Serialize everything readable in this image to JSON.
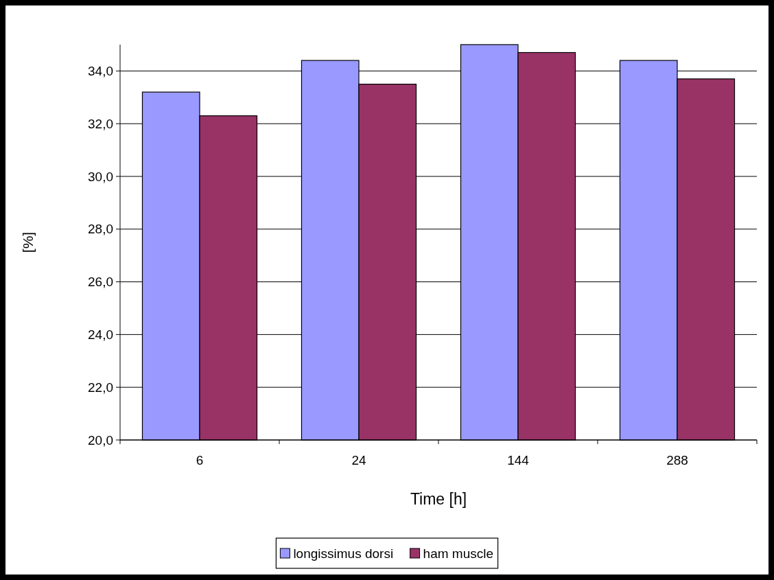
{
  "chart_data": {
    "type": "bar",
    "xlabel": "Time [h]",
    "ylabel": "[%]",
    "categories": [
      "6",
      "24",
      "144",
      "288"
    ],
    "series": [
      {
        "name": "longissimus dorsi",
        "color": "#9999ff",
        "values": [
          33.2,
          34.4,
          35.0,
          34.4
        ]
      },
      {
        "name": "ham muscle",
        "color": "#993366",
        "values": [
          32.3,
          33.5,
          34.7,
          33.7
        ]
      }
    ],
    "ylim": [
      20,
      35
    ],
    "yticks": [
      {
        "value": 20,
        "label": "20,0"
      },
      {
        "value": 22,
        "label": "22,0"
      },
      {
        "value": 24,
        "label": "24,0"
      },
      {
        "value": 26,
        "label": "26,0"
      },
      {
        "value": 28,
        "label": "28,0"
      },
      {
        "value": 30,
        "label": "30,0"
      },
      {
        "value": 32,
        "label": "32,0"
      },
      {
        "value": 34,
        "label": "34,0"
      }
    ],
    "grid": "y",
    "legend": "bottom"
  }
}
